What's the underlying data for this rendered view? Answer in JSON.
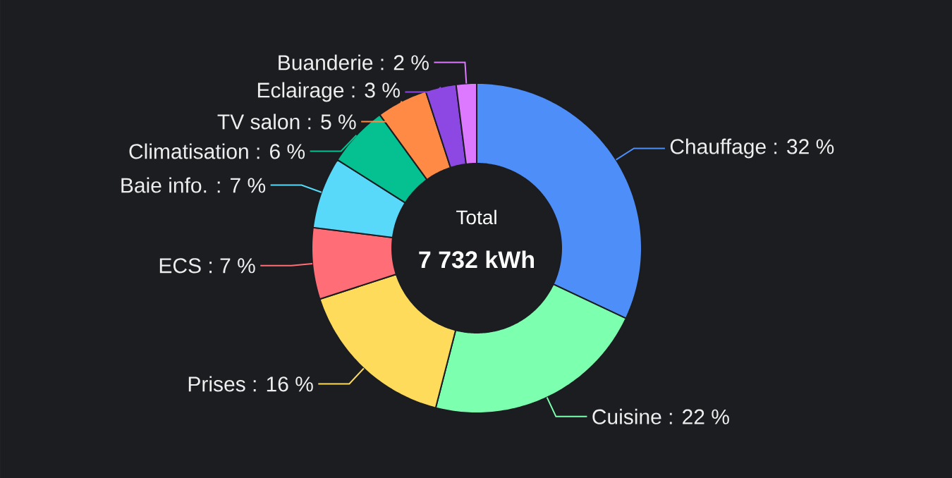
{
  "chart_data": {
    "type": "donut",
    "categories": [
      "Chauffage : 32 %",
      "Cuisine : 22 %",
      "Prises : 16 %",
      "ECS : 7 %",
      "Baie info. : 7 %",
      "Climatisation : 6 %",
      "TV salon : 5 %",
      "Eclairage : 3 %",
      "Buanderie : 2 %"
    ],
    "values": [
      32,
      22,
      16,
      7,
      7,
      6,
      5,
      3,
      2
    ],
    "colors": [
      "#4d8ef8",
      "#7dffb0",
      "#ffdb5c",
      "#ff6e76",
      "#58d9f9",
      "#05c091",
      "#ff8a45",
      "#8d48e3",
      "#dd79ff"
    ],
    "annotations": [
      "Total",
      "7 732 kWh"
    ]
  }
}
